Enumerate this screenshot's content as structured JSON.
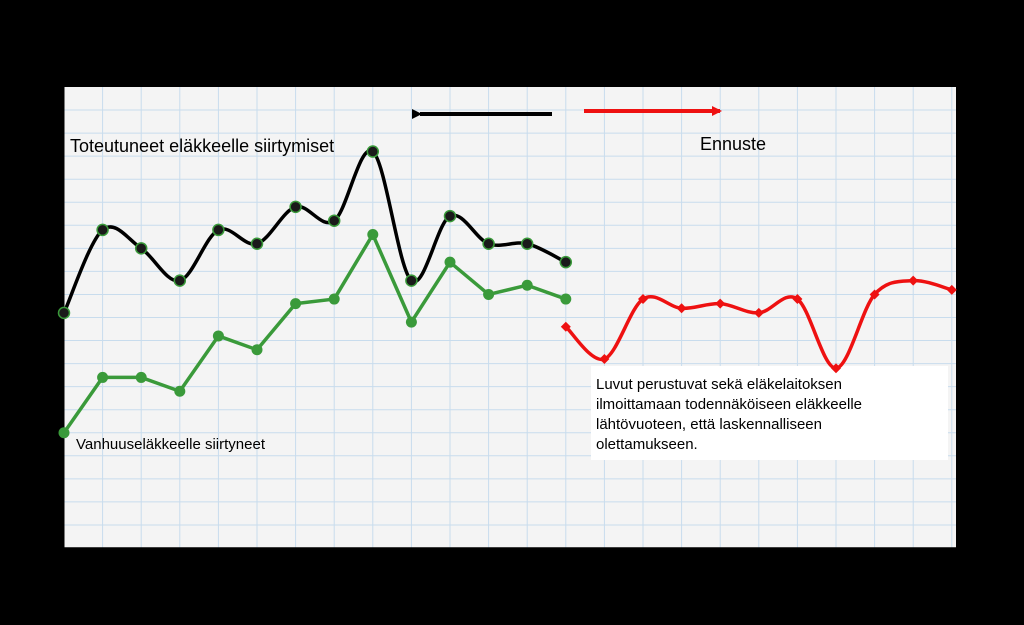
{
  "chart_data": {
    "type": "line",
    "x_positions": [
      1,
      2,
      3,
      4,
      5,
      6,
      7,
      8,
      9,
      10,
      11,
      12,
      13,
      14,
      15,
      16,
      17,
      18,
      19,
      20,
      21,
      22,
      23,
      24
    ],
    "ylim": [
      0,
      10
    ],
    "grid": true,
    "series": [
      {
        "name": "Toteutuneet eläkkeelle siirtymiset",
        "color": "#000000",
        "marker_color": "#1a1a1a",
        "marker": "circle",
        "smooth": true,
        "start": 1,
        "values": [
          5.1,
          6.9,
          6.5,
          5.8,
          6.9,
          6.6,
          7.4,
          7.1,
          8.6,
          5.8,
          7.2,
          6.6,
          6.6,
          6.2
        ]
      },
      {
        "name": "Vanhuuseläkkeelle siirtyneet",
        "color": "#3a9a3a",
        "marker_color": "#3a9a3a",
        "marker": "circle",
        "smooth": false,
        "start": 1,
        "values": [
          2.5,
          3.7,
          3.7,
          3.4,
          4.6,
          4.3,
          5.3,
          5.4,
          6.8,
          4.9,
          6.2,
          5.5,
          5.7,
          5.4
        ]
      },
      {
        "name": "Ennuste",
        "color": "#ee1111",
        "marker_color": "#ee1111",
        "marker": "diamond",
        "smooth": true,
        "start": 14,
        "values": [
          4.8,
          4.1,
          5.4,
          5.2,
          5.3,
          5.1,
          5.4,
          3.9,
          5.5,
          5.8,
          5.6
        ]
      }
    ],
    "annotations": {
      "realized_label": "Toteutuneet eläkkeelle siirtymiset",
      "old_age_label": "Vanhuuseläkkeelle siirtyneet",
      "forecast_label": "Ennuste",
      "note_lines": [
        "Luvut perustuvat sekä eläkelaitoksen",
        "ilmoittamaan todennäköiseen eläkkeelle",
        "lähtövuoteen, että laskennalliseen",
        "olettamukseen."
      ]
    },
    "arrows": {
      "history_color": "#000000",
      "forecast_color": "#ee1111"
    }
  }
}
